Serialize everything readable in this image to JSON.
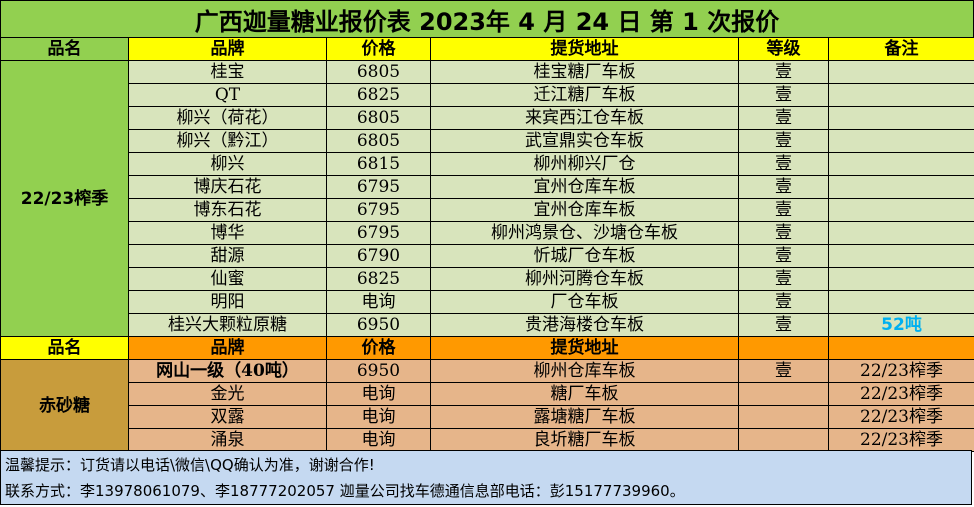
{
  "title": "广西迦量糖业报价表 2023年 4 月 24 日 第 1 次报价",
  "headers_green": [
    "品名",
    "品牌",
    "价格",
    "提货地址",
    "等级",
    "备注"
  ],
  "category_green": "22/23榨季",
  "rows_green": [
    {
      "brand": "桂宝",
      "price": "6805",
      "address": "桂宝糖厂车板",
      "grade": "壹",
      "note": ""
    },
    {
      "brand": "QT",
      "price": "6825",
      "address": "迁江糖厂车板",
      "grade": "壹",
      "note": ""
    },
    {
      "brand": "柳兴（荷花）",
      "price": "6805",
      "address": "来宾西江仓车板",
      "grade": "壹",
      "note": ""
    },
    {
      "brand": "柳兴（黔江）",
      "price": "6805",
      "address": "武宣鼎实仓车板",
      "grade": "壹",
      "note": ""
    },
    {
      "brand": "柳兴",
      "price": "6815",
      "address": "柳州柳兴厂仓",
      "grade": "壹",
      "note": ""
    },
    {
      "brand": "博庆石花",
      "price": "6795",
      "address": "宜州仓库车板",
      "grade": "壹",
      "note": ""
    },
    {
      "brand": "博东石花",
      "price": "6795",
      "address": "宜州仓库车板",
      "grade": "壹",
      "note": ""
    },
    {
      "brand": "博华",
      "price": "6795",
      "address": "柳州鸿景仓、沙塘仓车板",
      "grade": "壹",
      "note": ""
    },
    {
      "brand": "甜源",
      "price": "6790",
      "address": "忻城厂仓车板",
      "grade": "壹",
      "note": ""
    },
    {
      "brand": "仙蜜",
      "price": "6825",
      "address": "柳州河腾仓车板",
      "grade": "壹",
      "note": ""
    },
    {
      "brand": "明阳",
      "price": "电询",
      "address": "厂仓车板",
      "grade": "壹",
      "note": ""
    },
    {
      "brand": "桂兴大颗粒原糖",
      "price": "6950",
      "address": "贵港海楼仓车板",
      "grade": "壹",
      "note": "52吨"
    }
  ],
  "headers_orange": [
    "品名",
    "品牌",
    "价格",
    "提货地址",
    "",
    ""
  ],
  "category_orange": "赤砂糖",
  "rows_orange": [
    {
      "brand": "网山一级（40吨）",
      "price": "6950",
      "address": "柳州仓库车板",
      "grade": "壹",
      "note": "22/23榨季"
    },
    {
      "brand": "金光",
      "price": "电询",
      "address": "糖厂车板",
      "grade": "",
      "note": "22/23榨季"
    },
    {
      "brand": "双露",
      "price": "电询",
      "address": "露塘糖厂车板",
      "grade": "",
      "note": "22/23榨季"
    },
    {
      "brand": "涌泉",
      "price": "电询",
      "address": "良圻糖厂车板",
      "grade": "",
      "note": "22/23榨季"
    }
  ],
  "footer": {
    "line1": "温馨提示：订货请以电话\\微信\\QQ确认为准，谢谢合作!",
    "line2": "联系方式：李13978061079、李18777202057   迦量公司找车德通信息部电话：彭15177739960。"
  }
}
